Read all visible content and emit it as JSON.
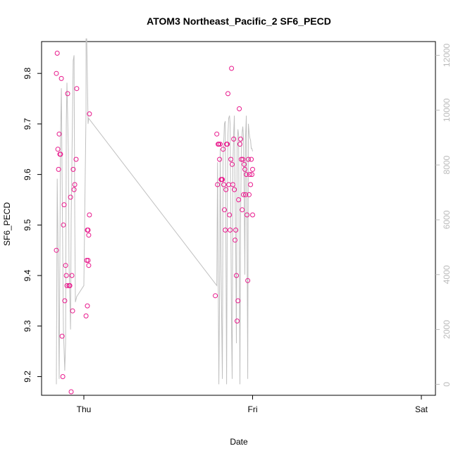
{
  "chart_data": {
    "type": "scatter",
    "title": "ATOM3 Northeast_Pacific_2 SF6_PECD",
    "xlabel": "Date",
    "ylabel": "SF6_PECD",
    "xlim": [
      0,
      2.0
    ],
    "ylim": [
      9.163,
      9.863
    ],
    "y2lim": [
      -400,
      12500
    ],
    "x_ticks": [
      {
        "label": "Thu",
        "value": 0.0
      },
      {
        "label": "Fri",
        "value": 1.0
      },
      {
        "label": "Sat",
        "value": 2.0
      }
    ],
    "y_ticks": [
      9.2,
      9.3,
      9.4,
      9.5,
      9.6,
      9.7,
      9.8
    ],
    "y2_ticks": [
      "0",
      "2000",
      "4000",
      "6000",
      "8000",
      "10000",
      "12000"
    ],
    "y2_tick_values": [
      0,
      2000,
      4000,
      6000,
      8000,
      10000,
      12000
    ],
    "colors": {
      "points": "#e8198c",
      "line": "#c0c0c0",
      "axis": "#000000",
      "right_axis": "#bbbbbb"
    },
    "series": [
      {
        "type": "scatter",
        "x": [
          -0.163,
          -0.163,
          -0.158,
          -0.154,
          -0.15,
          -0.146,
          -0.142,
          -0.138,
          -0.133,
          -0.129,
          -0.125,
          -0.121,
          -0.117,
          -0.113,
          -0.108,
          -0.104,
          -0.1,
          -0.096,
          -0.088,
          -0.083,
          -0.079,
          -0.075,
          -0.071,
          -0.067,
          -0.063,
          -0.058,
          -0.054,
          -0.046,
          -0.042,
          0.013,
          0.017,
          0.021,
          0.021,
          0.025,
          0.025,
          0.029,
          0.029,
          0.033,
          0.033,
          0.779,
          0.788,
          0.792,
          0.796,
          0.8,
          0.804,
          0.808,
          0.813,
          0.817,
          0.821,
          0.825,
          0.829,
          0.833,
          0.838,
          0.842,
          0.846,
          0.85,
          0.854,
          0.858,
          0.863,
          0.867,
          0.871,
          0.875,
          0.879,
          0.883,
          0.888,
          0.892,
          0.896,
          0.9,
          0.904,
          0.908,
          0.913,
          0.917,
          0.921,
          0.925,
          0.929,
          0.933,
          0.938,
          0.942,
          0.946,
          0.95,
          0.954,
          0.958,
          0.963,
          0.967,
          0.971,
          0.975,
          0.979,
          0.983,
          0.988,
          0.992,
          0.996,
          1.0,
          1.0
        ],
        "y": [
          9.45,
          9.8,
          9.84,
          9.65,
          9.61,
          9.68,
          9.64,
          9.64,
          9.79,
          9.28,
          9.2,
          9.5,
          9.54,
          9.35,
          9.42,
          9.4,
          9.38,
          9.76,
          9.38,
          9.38,
          9.555,
          9.17,
          9.4,
          9.33,
          9.61,
          9.57,
          9.58,
          9.63,
          9.77,
          9.32,
          9.43,
          9.34,
          9.49,
          9.49,
          9.43,
          9.48,
          9.42,
          9.52,
          9.72,
          9.36,
          9.68,
          9.58,
          9.66,
          9.66,
          9.63,
          9.66,
          9.59,
          9.59,
          9.59,
          9.65,
          9.58,
          9.53,
          9.49,
          9.57,
          9.66,
          9.66,
          9.76,
          9.58,
          9.52,
          9.49,
          9.63,
          9.81,
          9.62,
          9.58,
          9.67,
          9.57,
          9.47,
          9.49,
          9.4,
          9.31,
          9.35,
          9.55,
          9.73,
          9.66,
          9.67,
          9.63,
          9.53,
          9.63,
          9.56,
          9.62,
          9.61,
          9.56,
          9.6,
          9.52,
          9.39,
          9.63,
          9.56,
          9.6,
          9.58,
          9.63,
          9.6,
          9.61,
          9.52
        ]
      },
      {
        "type": "line",
        "axis": "right",
        "x": [
          -0.163,
          -0.158,
          -0.154,
          -0.146,
          -0.142,
          -0.138,
          -0.133,
          -0.125,
          -0.121,
          -0.113,
          -0.108,
          -0.104,
          -0.1,
          -0.092,
          -0.088,
          -0.079,
          -0.075,
          -0.067,
          -0.063,
          -0.058,
          -0.054,
          -0.05,
          -0.042,
          0.0,
          0.013,
          0.013,
          0.017,
          0.025,
          0.029,
          0.788,
          0.792,
          0.8,
          0.804,
          0.808,
          0.813,
          0.821,
          0.825,
          0.829,
          0.833,
          0.838,
          0.846,
          0.85,
          0.854,
          0.858,
          0.863,
          0.867,
          0.875,
          0.879,
          0.883,
          0.888,
          0.892,
          0.896,
          0.9,
          0.904,
          0.908,
          0.913,
          0.917,
          0.925,
          0.929,
          0.933,
          0.938,
          0.942,
          0.946,
          0.95,
          0.954,
          0.958,
          0.963,
          0.967,
          0.971,
          0.975,
          0.979,
          0.983,
          0.988,
          0.992,
          0.996,
          1.0
        ],
        "y": [
          0.0,
          7500.0,
          5500.0,
          200.0,
          4800.0,
          9000.0,
          10800.0,
          4500.0,
          2000.0,
          500.0,
          1500.0,
          9500.0,
          11000.0,
          8500.0,
          4500.0,
          2000.0,
          6000.0,
          10000.0,
          11800.0,
          12000.0,
          6000.0,
          3000.0,
          3200.0,
          3600.0,
          10000.0,
          12600.0,
          12600.0,
          9500.0,
          9700.0,
          3600.0,
          8100.0,
          0.0,
          3300.0,
          8600.0,
          4200.0,
          200.0,
          8300.0,
          8800.0,
          9500.0,
          9600.0,
          0.0,
          6500.0,
          9100.0,
          9700.0,
          9800.0,
          9500.0,
          2000.0,
          200.0,
          8000.0,
          9200.0,
          9800.0,
          7000.0,
          4700.0,
          1500.0,
          8800.0,
          9300.0,
          9100.0,
          0.0,
          6200.0,
          8500.0,
          9200.0,
          9400.0,
          9000.0,
          7000.0,
          4000.0,
          9000.0,
          9800.0,
          5400.0,
          200.0,
          9500.0,
          9200.0,
          9000.0,
          8900.0,
          8600.0,
          8600.0,
          8500.0
        ]
      }
    ]
  }
}
